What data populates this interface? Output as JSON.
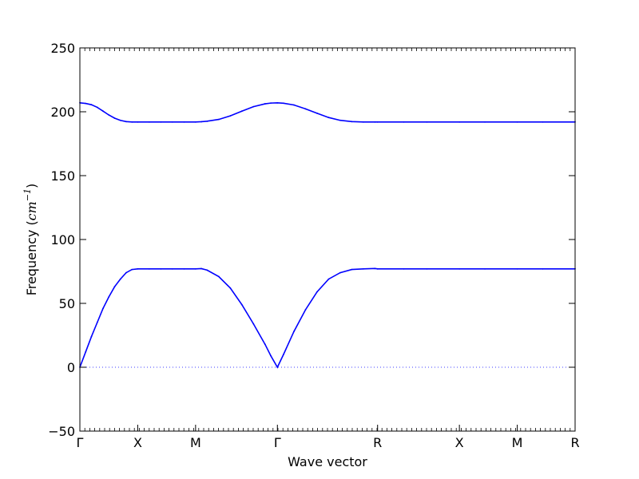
{
  "chart_data": {
    "type": "line",
    "title": "",
    "xlabel": "Wave vector",
    "ylabel_prefix": "Frequency (",
    "ylabel_unit": "cm",
    "ylabel_exp": "−1",
    "ylabel_suffix": ")",
    "ylim": [
      -50,
      250
    ],
    "yticks": [
      -50,
      0,
      50,
      100,
      150,
      200,
      250
    ],
    "ytick_labels": [
      "−50",
      "0",
      "50",
      "100",
      "150",
      "200",
      "250"
    ],
    "x_segments": [
      {
        "label": "Γ",
        "x": 0.0
      },
      {
        "label": "X",
        "x": 0.5
      },
      {
        "label": "M",
        "x": 1.0
      },
      {
        "label": "Γ",
        "x": 1.707
      },
      {
        "label": "R",
        "x": 2.573
      },
      {
        "label": "X",
        "x": 3.28
      },
      {
        "label": "M",
        "x": 3.78
      },
      {
        "label": "R",
        "x": 4.28
      }
    ],
    "xlim": [
      0,
      4.28
    ],
    "zero_line": {
      "y": 0,
      "style": "dotted"
    },
    "grid": false,
    "legend": "none",
    "line_color": "#0000ff",
    "series": [
      {
        "x": [
          0.0,
          0.05,
          0.1,
          0.15,
          0.2,
          0.25,
          0.3,
          0.35,
          0.4,
          0.45,
          0.5,
          0.6,
          0.7,
          0.8,
          0.9,
          1.0,
          1.05,
          1.1,
          1.2,
          1.3,
          1.4,
          1.5,
          1.6,
          1.65,
          1.707,
          1.76,
          1.85,
          1.95,
          2.05,
          2.15,
          2.25,
          2.35,
          2.45,
          2.55,
          2.573,
          2.8,
          3.0,
          3.28,
          3.5,
          3.78,
          4.0,
          4.28
        ],
        "y": [
          0,
          12,
          24,
          35,
          46,
          55,
          63,
          69,
          74,
          76.5,
          77,
          77,
          77,
          77,
          77,
          77,
          77.2,
          76,
          71,
          62,
          49,
          34,
          18,
          9,
          0,
          10,
          28,
          45,
          59,
          69,
          74,
          76.5,
          77,
          77.3,
          77,
          77,
          77,
          77,
          77,
          77,
          77,
          77
        ]
      },
      {
        "x": [
          0.0,
          0.05,
          0.1,
          0.15,
          0.2,
          0.25,
          0.3,
          0.35,
          0.4,
          0.45,
          0.5,
          0.6,
          0.7,
          0.8,
          0.9,
          1.0,
          1.05,
          1.1,
          1.2,
          1.3,
          1.4,
          1.5,
          1.6,
          1.65,
          1.707,
          1.76,
          1.85,
          1.95,
          2.05,
          2.15,
          2.25,
          2.35,
          2.45,
          2.55,
          2.573,
          2.8,
          3.0,
          3.28,
          3.5,
          3.78,
          4.0,
          4.28
        ],
        "y": [
          207,
          206.5,
          205.5,
          203.5,
          200.5,
          197.5,
          195,
          193.3,
          192.3,
          192,
          192,
          192,
          192,
          192,
          192,
          192,
          192.2,
          192.6,
          194,
          196.8,
          200.5,
          204,
          206.2,
          206.8,
          207,
          206.7,
          205.3,
          202.3,
          198.8,
          195.5,
          193.3,
          192.3,
          192,
          192,
          192,
          192,
          192,
          192,
          192,
          192,
          192,
          192
        ]
      }
    ]
  }
}
